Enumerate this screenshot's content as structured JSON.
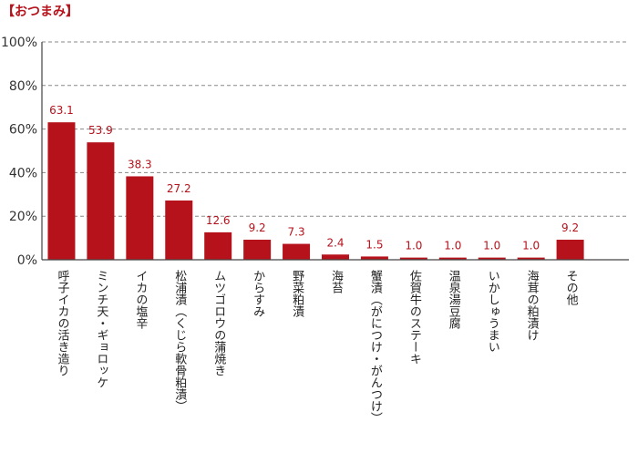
{
  "title": "【おつまみ】",
  "colors": {
    "bar": "#b5121b",
    "value_label": "#b5121b",
    "grid": "#888888",
    "axis": "#444444"
  },
  "chart_data": {
    "type": "bar",
    "title": "【おつまみ】",
    "xlabel": "",
    "ylabel": "",
    "ylim": [
      0,
      100
    ],
    "yticks": [
      "0%",
      "20%",
      "40%",
      "60%",
      "80%",
      "100%"
    ],
    "ytick_values": [
      0,
      20,
      40,
      60,
      80,
      100
    ],
    "grid": "dashed horizontal",
    "categories": [
      "呼子イカの活き造り",
      "ミンチ天・ギョロッケ",
      "イカの塩辛",
      "松浦漬（くじら軟骨粕漬）",
      "ムツゴロウの蒲焼き",
      "からすみ",
      "野菜粕漬",
      "海苔",
      "蟹漬（がにつけ・がんつけ）",
      "佐賀牛のステーキ",
      "温泉湯豆腐",
      "いかしゅうまい",
      "海茸の粕漬け",
      "その他",
      ""
    ],
    "values": [
      63.1,
      53.9,
      38.3,
      27.2,
      12.6,
      9.2,
      7.3,
      2.4,
      1.5,
      1.0,
      1.0,
      1.0,
      1.0,
      9.2,
      null
    ],
    "value_labels": [
      "63.1",
      "53.9",
      "38.3",
      "27.2",
      "12.6",
      "9.2",
      "7.3",
      "2.4",
      "1.5",
      "1.0",
      "1.0",
      "1.0",
      "1.0",
      "9.2",
      ""
    ]
  }
}
